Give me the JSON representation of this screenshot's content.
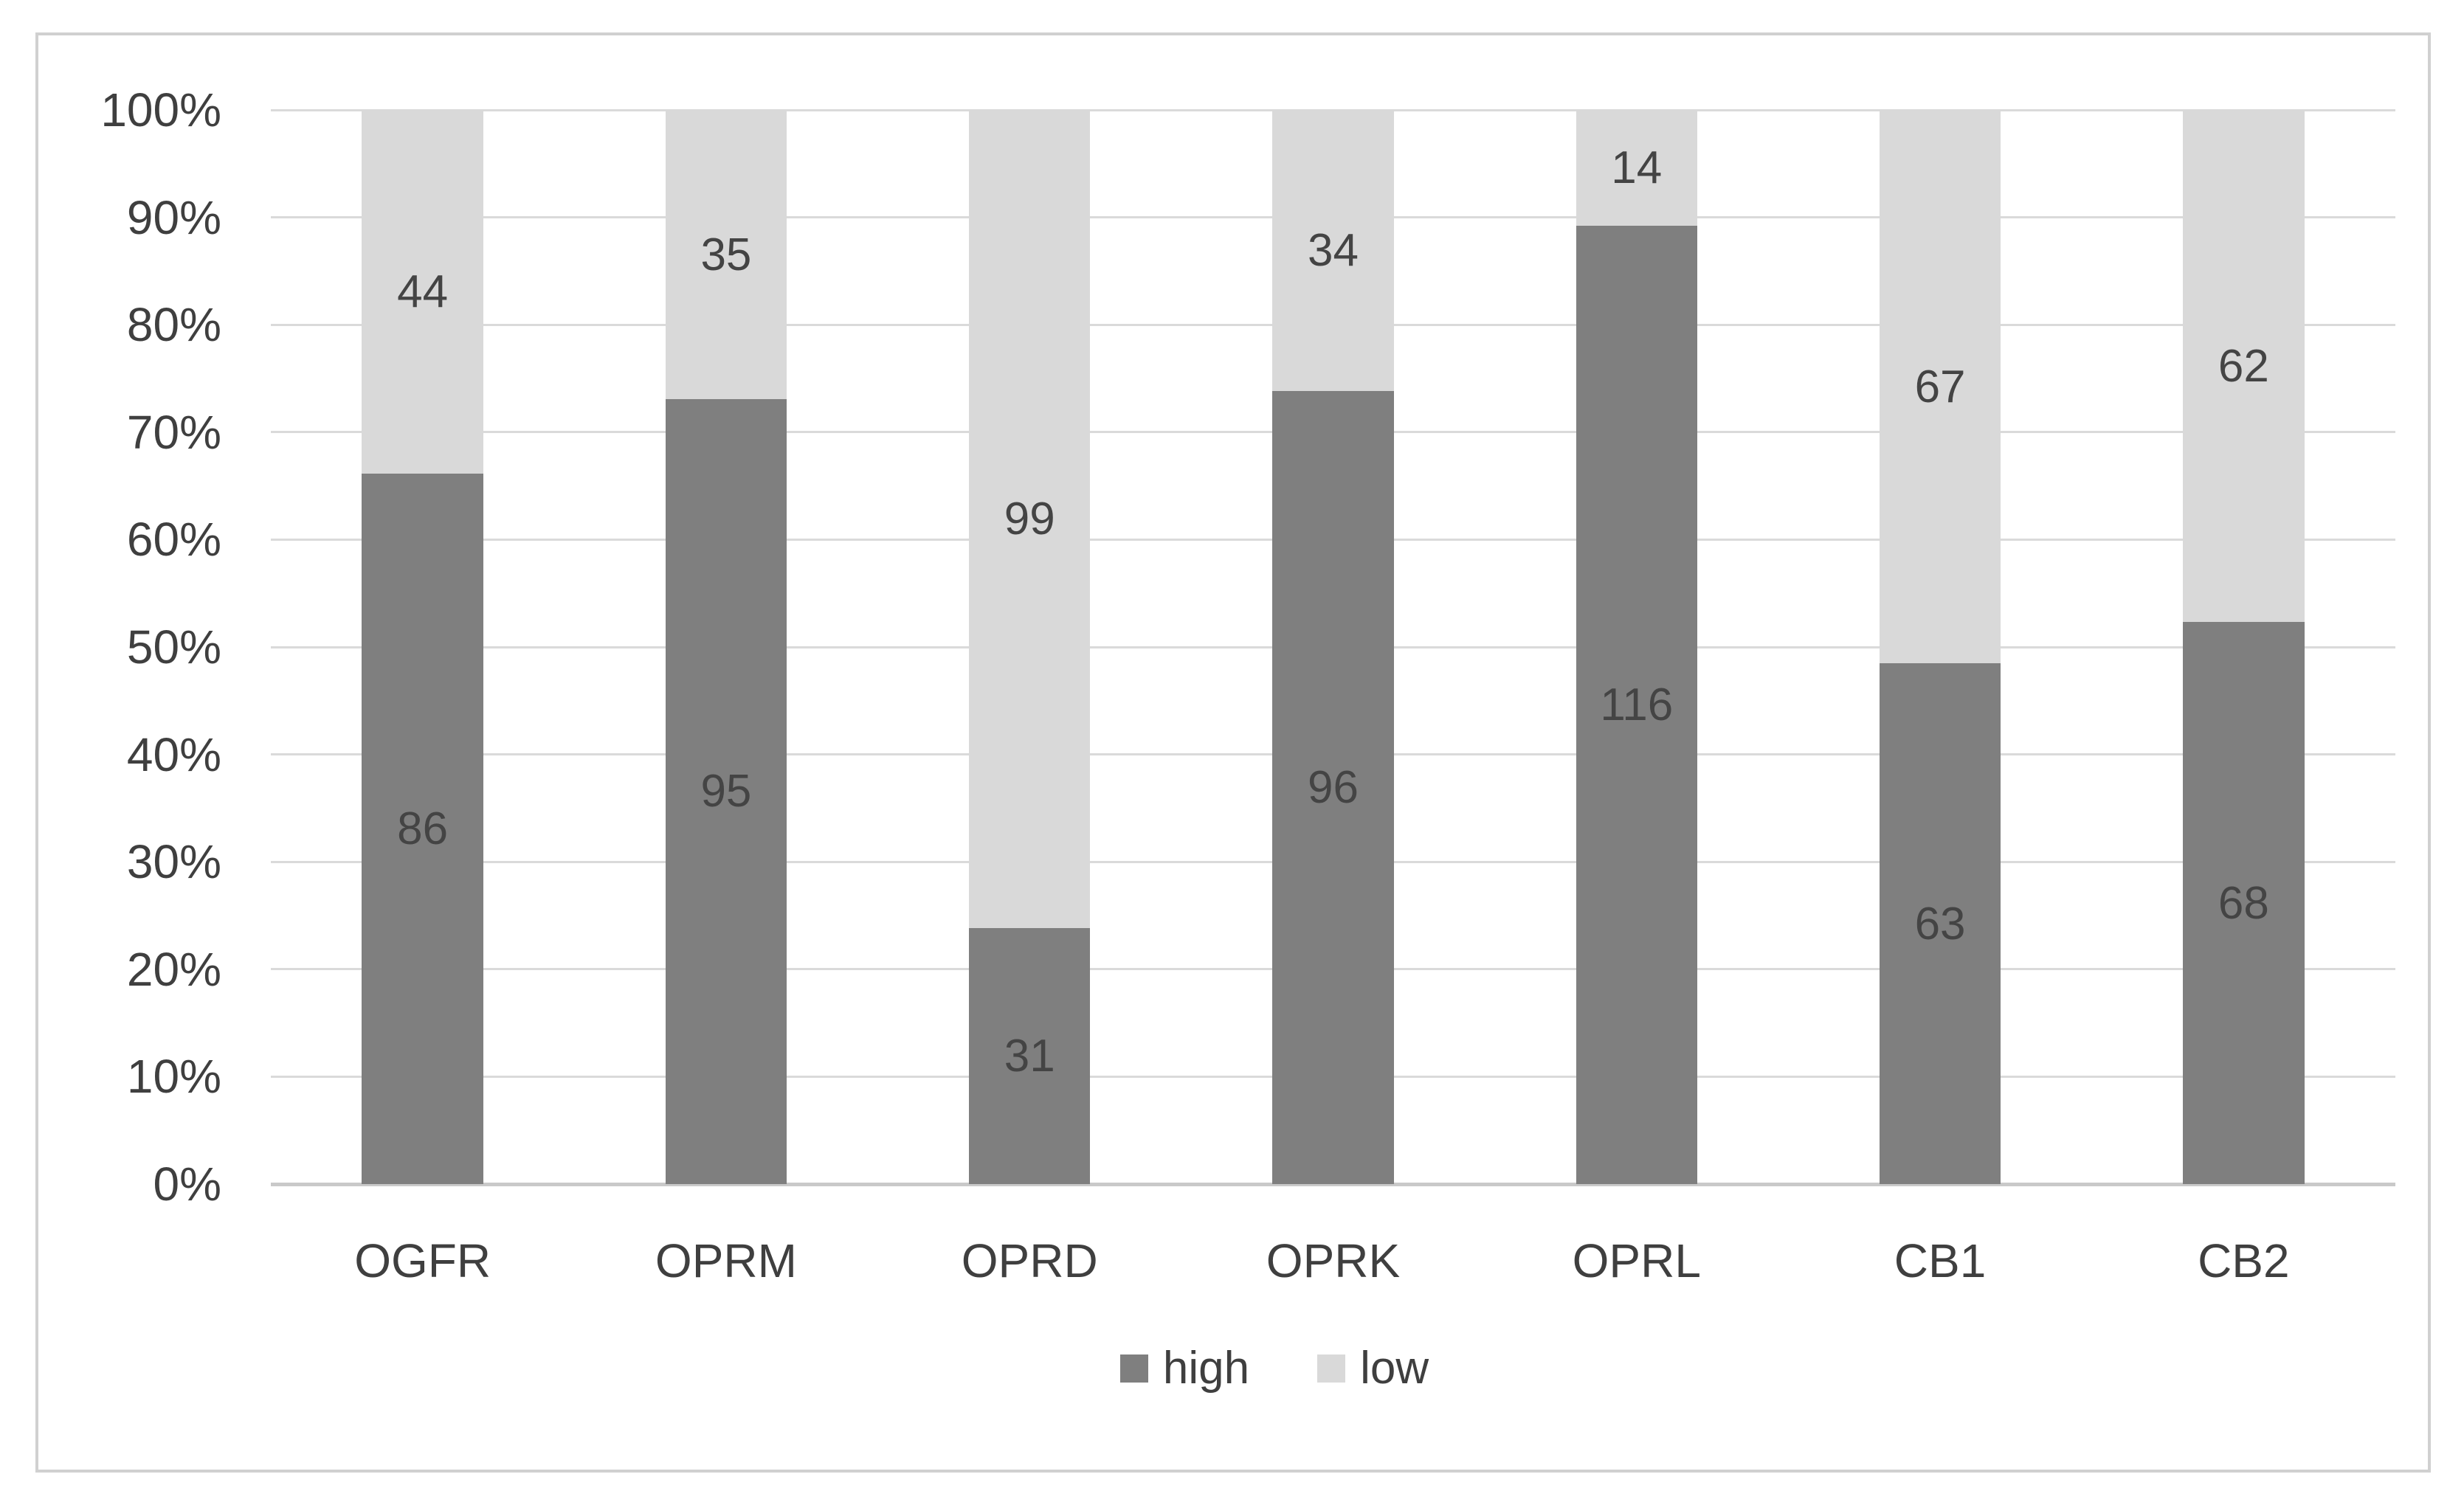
{
  "chart_data": {
    "type": "bar",
    "subtype": "stacked-100-percent",
    "title": "",
    "categories": [
      "OGFR",
      "OPRM",
      "OPRD",
      "OPRK",
      "OPRL",
      "CB1",
      "CB2"
    ],
    "series": [
      {
        "name": "high",
        "color": "#7f7f7f",
        "values": [
          86,
          95,
          31,
          96,
          116,
          63,
          68
        ]
      },
      {
        "name": "low",
        "color": "#d9d9d9",
        "values": [
          44,
          35,
          99,
          34,
          14,
          67,
          62
        ]
      }
    ],
    "data_labels": true,
    "y_axis": {
      "min": 0,
      "max": 100,
      "unit": "%",
      "ticks": [
        "0%",
        "10%",
        "20%",
        "30%",
        "40%",
        "50%",
        "60%",
        "70%",
        "80%",
        "90%",
        "100%"
      ],
      "grid": true
    },
    "x_axis": {
      "label": ""
    },
    "legend": {
      "position": "bottom",
      "items": [
        "high",
        "low"
      ]
    },
    "colors": {
      "label_text": "#444444",
      "axis_text": "#3f3f3f",
      "gridline": "#dadada",
      "axis_line": "#c9c9c9",
      "frame_border": "#d0d0d0",
      "background": "#ffffff"
    }
  }
}
